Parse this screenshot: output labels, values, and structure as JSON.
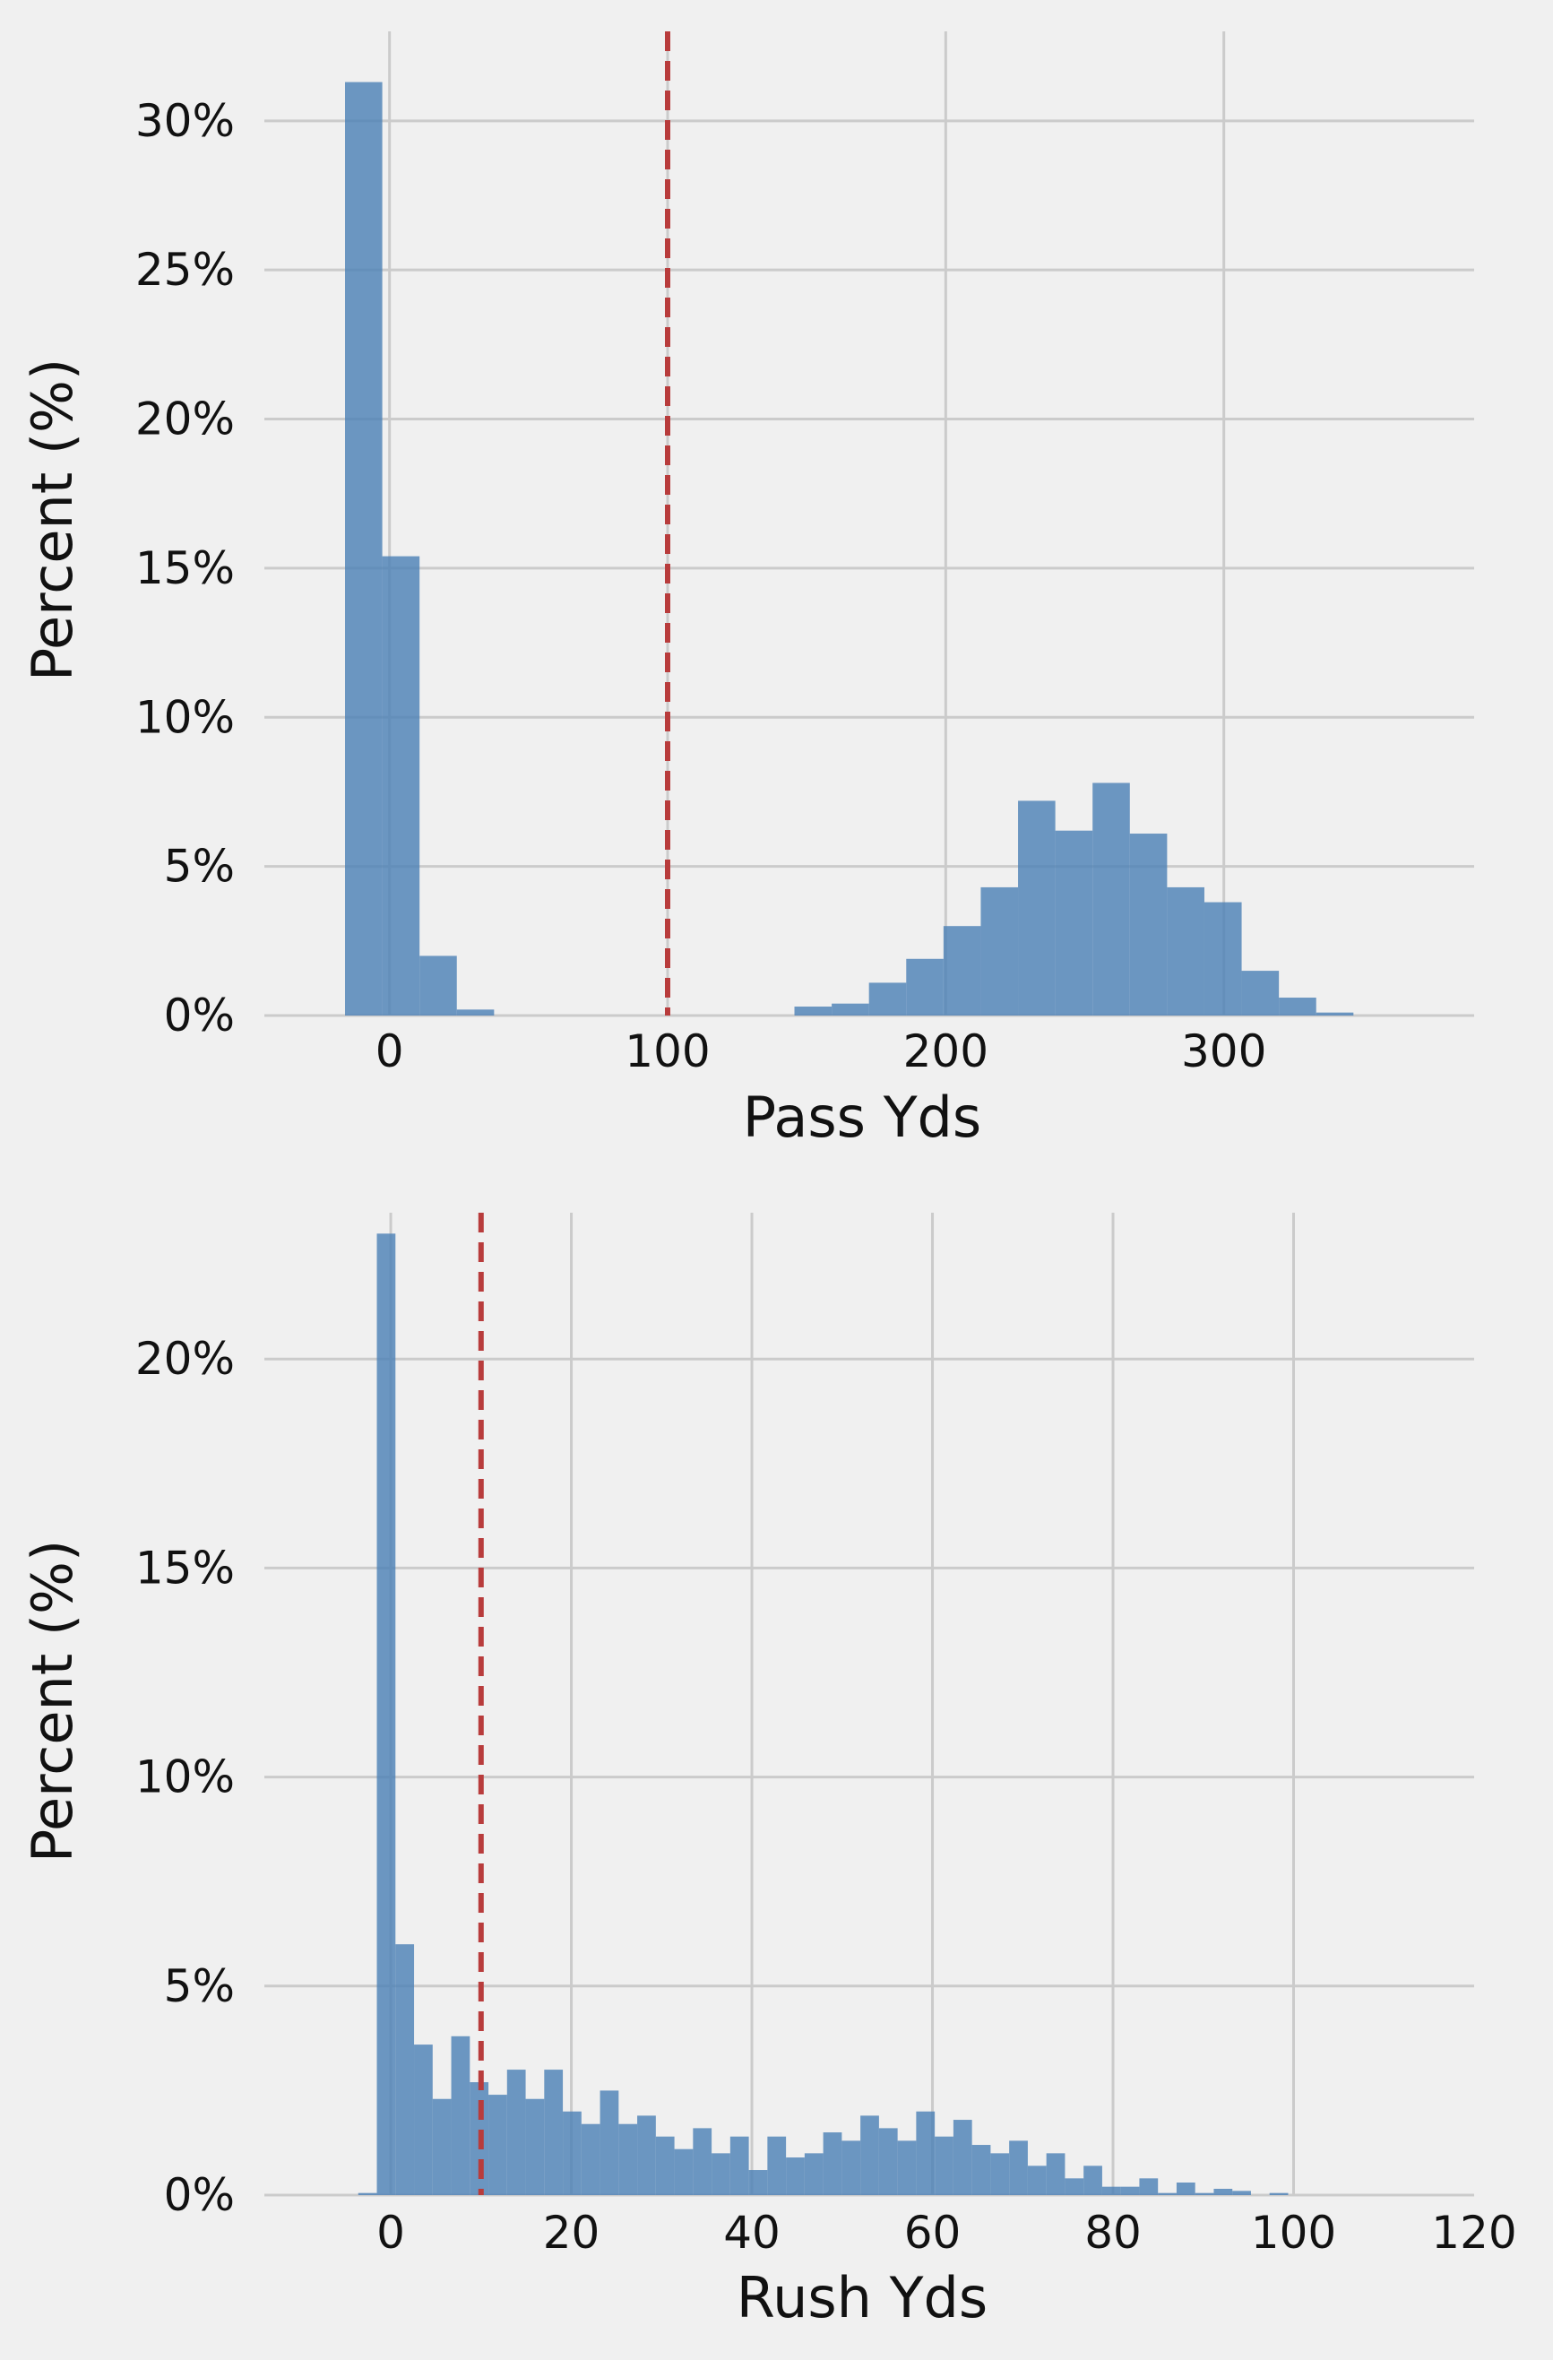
{
  "chart_data": [
    {
      "type": "bar",
      "xlabel": "Pass Yds",
      "ylabel": "Percent (%)",
      "xlim": [
        -45,
        390
      ],
      "ylim": [
        0,
        33
      ],
      "xticks": [
        0,
        100,
        200,
        300
      ],
      "xtick_labels": [
        "0",
        "100",
        "200",
        "300"
      ],
      "yticks": [
        0,
        5,
        10,
        15,
        20,
        25,
        30
      ],
      "ytick_labels": [
        "0%",
        "5%",
        "10%",
        "15%",
        "20%",
        "25%",
        "30%"
      ],
      "grid": true,
      "bar_color": "#4a7fb5",
      "reference_line": {
        "x": 100,
        "color": "#b83c3c",
        "style": "dashed"
      },
      "bins": [
        {
          "x0": -16,
          "x1": -2.6,
          "value": 31.3
        },
        {
          "x0": -2.6,
          "x1": 10.8,
          "value": 15.4
        },
        {
          "x0": 10.8,
          "x1": 24.2,
          "value": 2.0
        },
        {
          "x0": 24.2,
          "x1": 37.6,
          "value": 0.2
        },
        {
          "x0": 145.6,
          "x1": 159,
          "value": 0.3
        },
        {
          "x0": 159,
          "x1": 172.4,
          "value": 0.4
        },
        {
          "x0": 172.4,
          "x1": 185.8,
          "value": 1.1
        },
        {
          "x0": 185.8,
          "x1": 199.2,
          "value": 1.9
        },
        {
          "x0": 199.2,
          "x1": 212.6,
          "value": 3.0
        },
        {
          "x0": 212.6,
          "x1": 226,
          "value": 4.3
        },
        {
          "x0": 226,
          "x1": 239.4,
          "value": 7.2
        },
        {
          "x0": 239.4,
          "x1": 252.8,
          "value": 6.2
        },
        {
          "x0": 252.8,
          "x1": 266.2,
          "value": 7.8
        },
        {
          "x0": 266.2,
          "x1": 279.6,
          "value": 6.1
        },
        {
          "x0": 279.6,
          "x1": 293,
          "value": 4.3
        },
        {
          "x0": 293,
          "x1": 306.4,
          "value": 3.8
        },
        {
          "x0": 306.4,
          "x1": 319.8,
          "value": 1.5
        },
        {
          "x0": 319.8,
          "x1": 333.2,
          "value": 0.6
        },
        {
          "x0": 333.2,
          "x1": 346.6,
          "value": 0.1
        }
      ]
    },
    {
      "type": "bar",
      "xlabel": "Rush Yds",
      "ylabel": "Percent (%)",
      "xlim": [
        -14,
        120
      ],
      "ylim": [
        0,
        23.5
      ],
      "xticks": [
        0,
        20,
        40,
        60,
        80,
        100,
        120
      ],
      "xtick_labels": [
        "0",
        "20",
        "40",
        "60",
        "80",
        "100",
        "120"
      ],
      "yticks": [
        0,
        5,
        10,
        15,
        20
      ],
      "ytick_labels": [
        "0%",
        "5%",
        "10%",
        "15%",
        "20%"
      ],
      "grid": true,
      "bar_color": "#4a7fb5",
      "reference_line": {
        "x": 10,
        "color": "#b83c3c",
        "style": "dashed"
      },
      "bin_start": -3.6,
      "bin_width": 2.06,
      "values": [
        0.05,
        23.0,
        6.0,
        3.6,
        2.3,
        3.8,
        2.7,
        2.4,
        3.0,
        2.3,
        3.0,
        2.0,
        1.7,
        2.5,
        1.7,
        1.9,
        1.4,
        1.1,
        1.6,
        1.0,
        1.4,
        0.6,
        1.4,
        0.9,
        1.0,
        1.5,
        1.3,
        1.9,
        1.6,
        1.3,
        2.0,
        1.4,
        1.8,
        1.2,
        1.0,
        1.3,
        0.7,
        1.0,
        0.4,
        0.7,
        0.2,
        0.2,
        0.4,
        0.05,
        0.3,
        0.05,
        0.15,
        0.1,
        0.0,
        0.05
      ]
    }
  ]
}
